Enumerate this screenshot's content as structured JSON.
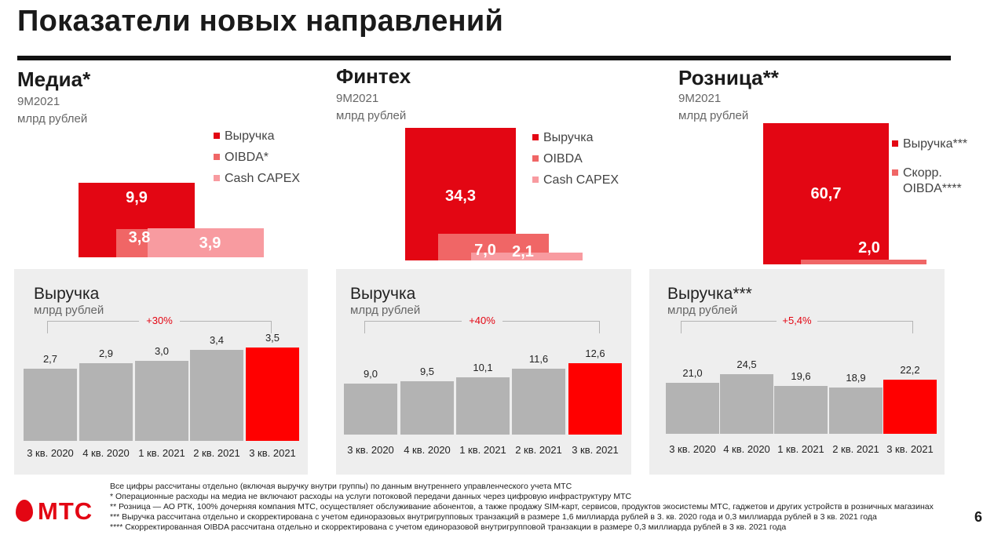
{
  "title": "Показатели новых направлений",
  "colors": {
    "red": "#e30613",
    "bright_red": "#ff0000",
    "oibda": "#f06666",
    "capex": "#f89ba0",
    "grey_bar": "#b3b3b3",
    "panel": "#eeeeee"
  },
  "chart_data": [
    {
      "type": "bar",
      "title": "Медиа*",
      "subtitle": [
        "9M2021",
        "млрд рублей"
      ],
      "categories": [
        "Выручка",
        "OIBDA*",
        "Cash CAPEX"
      ],
      "values": [
        9.9,
        3.8,
        3.9
      ],
      "value_labels": [
        "9,9",
        "3,8",
        "3,9"
      ]
    },
    {
      "type": "bar",
      "title": "Финтех",
      "subtitle": [
        "9M2021",
        "млрд рублей"
      ],
      "categories": [
        "Выручка",
        "OIBDA",
        "Cash CAPEX"
      ],
      "values": [
        34.3,
        7.0,
        2.1
      ],
      "value_labels": [
        "34,3",
        "7,0",
        "2,1"
      ]
    },
    {
      "type": "bar",
      "title": "Розница**",
      "subtitle": [
        "9M2021",
        "млрд рублей"
      ],
      "categories": [
        "Выручка***",
        "Скорр. OIBDA****"
      ],
      "legend_lines": [
        [
          "Выручка***"
        ],
        [
          "Скорр.",
          "OIBDA****"
        ]
      ],
      "values": [
        60.7,
        2.0
      ],
      "value_labels": [
        "60,7",
        "2,0"
      ]
    },
    {
      "type": "bar",
      "title": "Выручка",
      "ylabel": "млрд рублей",
      "annotation": "+30%",
      "categories": [
        "3 кв. 2020",
        "4 кв. 2020",
        "1 кв. 2021",
        "2 кв. 2021",
        "3 кв. 2021"
      ],
      "values": [
        2.7,
        2.9,
        3.0,
        3.4,
        3.5
      ],
      "value_labels": [
        "2,7",
        "2,9",
        "3,0",
        "3,4",
        "3,5"
      ]
    },
    {
      "type": "bar",
      "title": "Выручка",
      "ylabel": "млрд рублей",
      "annotation": "+40%",
      "categories": [
        "3 кв. 2020",
        "4 кв. 2020",
        "1 кв. 2021",
        "2 кв. 2021",
        "3 кв. 2021"
      ],
      "values": [
        9.0,
        9.5,
        10.1,
        11.6,
        12.6
      ],
      "value_labels": [
        "9,0",
        "9,5",
        "10,1",
        "11,6",
        "12,6"
      ]
    },
    {
      "type": "bar",
      "title": "Выручка***",
      "ylabel": "млрд рублей",
      "annotation": "+5,4%",
      "categories": [
        "3 кв. 2020",
        "4 кв. 2020",
        "1 кв. 2021",
        "2 кв. 2021",
        "3 кв. 2021"
      ],
      "values": [
        21.0,
        24.5,
        19.6,
        18.9,
        22.2
      ],
      "value_labels": [
        "21,0",
        "24,5",
        "19,6",
        "18,9",
        "22,2"
      ]
    }
  ],
  "footnotes": [
    "Все цифры рассчитаны отдельно (включая выручку внутри группы) по данным внутреннего управленческого учета МТС",
    "* Операционные расходы на медиа не включают расходы на услуги потоковой передачи данных через цифровую инфраструктуру МТС",
    "** Розница — АО РТК, 100% дочерняя компания МТС, осуществляет обслуживание абонентов, а также продажу SIM-карт, сервисов, продуктов экосистемы МТС, гаджетов и других устройств в розничных магазинах",
    "*** Выручка рассчитана отдельно и скорректирована с учетом единоразовых внутригрупповых транзакций в размере 1,6 миллиарда рублей в 3. кв. 2020 года и 0,3 миллиарда рублей  в 3 кв. 2021 года",
    "**** Скорректированная OIBDA рассчитана отдельно и скорректирована с учетом единоразовой внутригрупповой транзакции в размере 0,3 миллиарда рублей в 3 кв. 2021 года"
  ],
  "logo_text": "МТС",
  "page_number": "6"
}
